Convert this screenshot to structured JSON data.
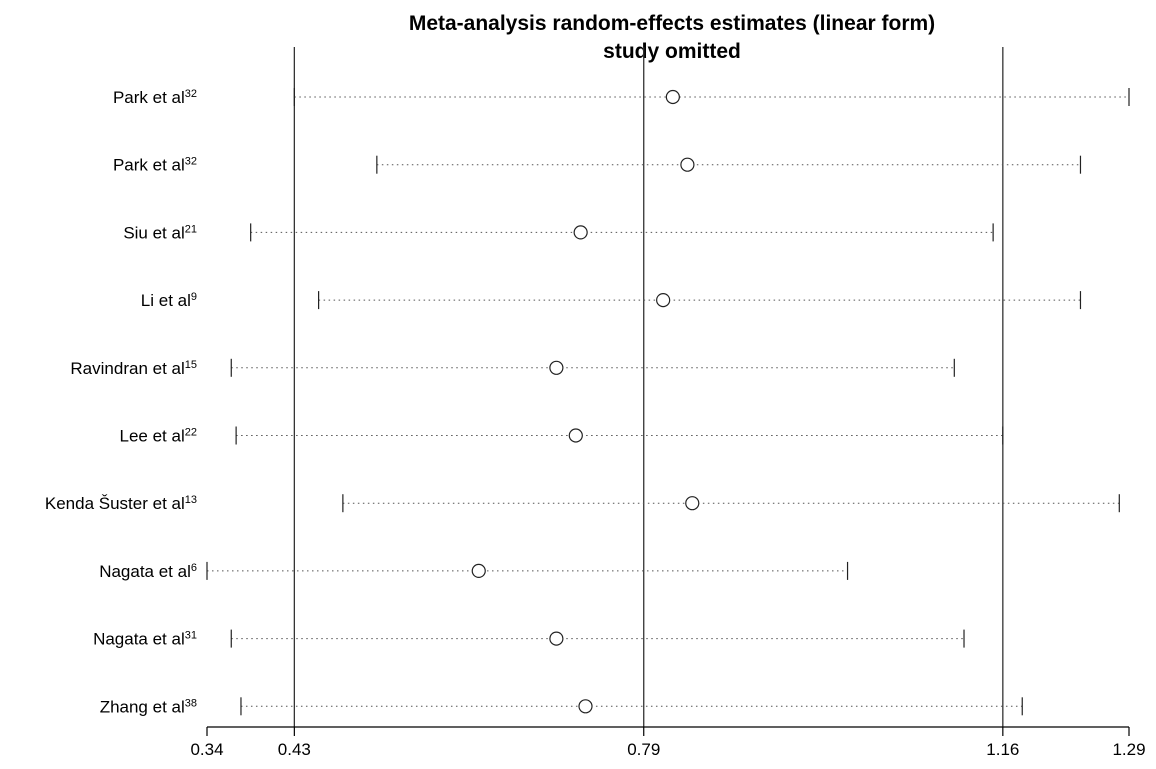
{
  "chart_data": {
    "type": "forest",
    "title": [
      "Meta-analysis random-effects estimates (linear form)",
      "study omitted"
    ],
    "xlim": [
      0.34,
      1.29
    ],
    "xticks": [
      {
        "value": 0.34,
        "label": "0.34"
      },
      {
        "value": 0.43,
        "label": "0.43"
      },
      {
        "value": 0.79,
        "label": "0.79"
      },
      {
        "value": 1.16,
        "label": "1.16"
      },
      {
        "value": 1.29,
        "label": "1.29"
      }
    ],
    "reference_lines": [
      0.43,
      0.79,
      1.16
    ],
    "studies": [
      {
        "name": "Park et al",
        "sup": "32",
        "estimate": 0.82,
        "lower": 0.43,
        "upper": 1.29
      },
      {
        "name": "Park et al",
        "sup": "32",
        "estimate": 0.835,
        "lower": 0.515,
        "upper": 1.24
      },
      {
        "name": "Siu et al",
        "sup": "21",
        "estimate": 0.725,
        "lower": 0.385,
        "upper": 1.15
      },
      {
        "name": "Li et al",
        "sup": "9",
        "estimate": 0.81,
        "lower": 0.455,
        "upper": 1.24
      },
      {
        "name": "Ravindran et al",
        "sup": "15",
        "estimate": 0.7,
        "lower": 0.365,
        "upper": 1.11
      },
      {
        "name": "Lee et al",
        "sup": "22",
        "estimate": 0.72,
        "lower": 0.37,
        "upper": 1.16
      },
      {
        "name": "Kenda Šuster et al",
        "sup": "13",
        "estimate": 0.84,
        "lower": 0.48,
        "upper": 1.28
      },
      {
        "name": "Nagata et al",
        "sup": "6",
        "estimate": 0.62,
        "lower": 0.34,
        "upper": 1.0
      },
      {
        "name": "Nagata et al",
        "sup": "31",
        "estimate": 0.7,
        "lower": 0.365,
        "upper": 1.12
      },
      {
        "name": "Zhang et al",
        "sup": "38",
        "estimate": 0.73,
        "lower": 0.375,
        "upper": 1.18
      }
    ]
  }
}
